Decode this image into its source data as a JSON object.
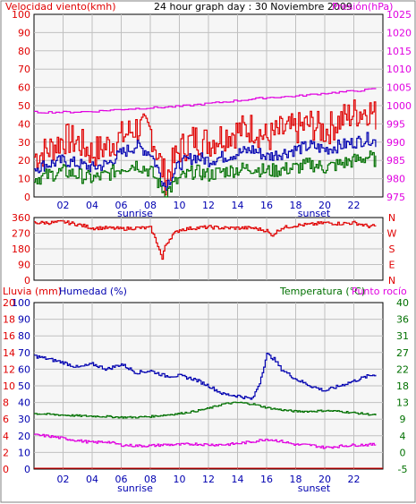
{
  "header": {
    "left_title": "Velocidad viento(kmh)",
    "center_title": "24 hour graph day : 30 Noviembre 2009",
    "right_title": "Presión(hPa)"
  },
  "colors": {
    "wind_speed": "#e00000",
    "wind_avg": "#0000b0",
    "wind_min": "#007000",
    "pressure": "#e000e0",
    "wind_dir": "#e00000",
    "rain": "#e00000",
    "humidity": "#0000b0",
    "temperature": "#007000",
    "dew_point": "#e000e0",
    "grid": "#c0c0c0",
    "plot_bg": "#f6f6f6"
  },
  "x_axis": {
    "hour_ticks": [
      "02",
      "04",
      "06",
      "08",
      "10",
      "12",
      "14",
      "16",
      "18",
      "20",
      "22"
    ],
    "sunrise_label": "sunrise",
    "sunset_label": "sunset",
    "sunrise_hour": 7,
    "sunset_hour": 19
  },
  "direction_panel": {
    "letters": [
      "N",
      "W",
      "S",
      "E",
      "N"
    ]
  },
  "bottom_header": {
    "rain_label": "Lluvia (mm)",
    "humidity_label": "Humedad (%)",
    "temperature_label": "Temperatura (°C)",
    "dew_label": "Punto rocío"
  },
  "chart_data": [
    {
      "type": "line",
      "title": "24 hour graph day : 30 Noviembre 2009",
      "x_range_hours": [
        0,
        24
      ],
      "y_left": {
        "label": "Velocidad viento(kmh)",
        "range": [
          0,
          100
        ],
        "ticks": [
          "0",
          "10",
          "20",
          "30",
          "40",
          "50",
          "60",
          "70",
          "80",
          "90",
          "100"
        ]
      },
      "y_right": {
        "label": "Presión(hPa)",
        "range": [
          975,
          1025
        ],
        "ticks": [
          "975",
          "980",
          "985",
          "990",
          "995",
          "1000",
          "1005",
          "1010",
          "1015",
          "1020",
          "1025"
        ]
      },
      "grid": true,
      "series": [
        {
          "name": "Velocidad viento",
          "axis": "left",
          "x": [
            0,
            1,
            2,
            3,
            4,
            5,
            6,
            7,
            8,
            9,
            10,
            11,
            12,
            13,
            14,
            15,
            16,
            17,
            18,
            19,
            20,
            21,
            22,
            23,
            23.5
          ],
          "y": [
            22,
            26,
            32,
            30,
            24,
            28,
            33,
            38,
            36,
            10,
            26,
            32,
            30,
            34,
            36,
            38,
            32,
            36,
            37,
            40,
            36,
            42,
            46,
            48,
            44
          ]
        },
        {
          "name": "Velocidad media",
          "axis": "left",
          "x": [
            0,
            1,
            2,
            3,
            4,
            5,
            6,
            7,
            8,
            9,
            10,
            11,
            12,
            13,
            14,
            15,
            16,
            17,
            18,
            19,
            20,
            21,
            22,
            23,
            23.5
          ],
          "y": [
            16,
            18,
            20,
            18,
            16,
            18,
            24,
            28,
            24,
            6,
            18,
            22,
            20,
            22,
            24,
            26,
            22,
            24,
            26,
            28,
            26,
            28,
            30,
            32,
            30
          ]
        },
        {
          "name": "Velocidad mínima",
          "axis": "left",
          "x": [
            0,
            1,
            2,
            3,
            4,
            5,
            6,
            7,
            8,
            9,
            10,
            11,
            12,
            13,
            14,
            15,
            16,
            17,
            18,
            19,
            20,
            21,
            22,
            23,
            23.5
          ],
          "y": [
            10,
            12,
            14,
            12,
            10,
            12,
            16,
            18,
            14,
            2,
            10,
            14,
            12,
            14,
            15,
            16,
            14,
            15,
            16,
            18,
            16,
            18,
            20,
            22,
            20
          ]
        },
        {
          "name": "Presión",
          "axis": "right",
          "x": [
            0,
            2,
            4,
            6,
            8,
            10,
            12,
            14,
            16,
            18,
            20,
            22,
            23.5
          ],
          "y": [
            998.2,
            998.2,
            998.4,
            999.0,
            999.4,
            999.8,
            1000.6,
            1001.4,
            1002.2,
            1002.6,
            1003.4,
            1004.0,
            1004.6
          ]
        }
      ]
    },
    {
      "type": "line",
      "title": "",
      "x_range_hours": [
        0,
        24
      ],
      "y_left": {
        "label": "",
        "range": [
          0,
          360
        ],
        "ticks": [
          "0",
          "90",
          "180",
          "270",
          "360"
        ]
      },
      "grid": true,
      "series": [
        {
          "name": "Dirección viento",
          "x": [
            0,
            1,
            2,
            3,
            4,
            5,
            6,
            7,
            8,
            8.5,
            8.8,
            9,
            9.5,
            10,
            11,
            12,
            13,
            14,
            15,
            16,
            16.3,
            17,
            18,
            19,
            20,
            21,
            22,
            23,
            23.5
          ],
          "y": [
            330,
            330,
            335,
            320,
            300,
            300,
            295,
            300,
            300,
            200,
            120,
            200,
            260,
            290,
            300,
            305,
            300,
            300,
            300,
            285,
            255,
            300,
            315,
            320,
            330,
            325,
            330,
            310,
            310
          ]
        }
      ]
    },
    {
      "type": "line",
      "title": "",
      "x_range_hours": [
        0,
        24
      ],
      "y_axes": {
        "rain": {
          "label": "Lluvia (mm)",
          "range": [
            0,
            20
          ],
          "ticks": [
            "0",
            "2",
            "4",
            "6",
            "8",
            "10",
            "12",
            "14",
            "16",
            "18",
            "20"
          ]
        },
        "humidity": {
          "label": "Humedad (%)",
          "range": [
            0,
            100
          ],
          "ticks": [
            "0",
            "10",
            "20",
            "30",
            "40",
            "50",
            "60",
            "70",
            "80",
            "90",
            "100"
          ]
        },
        "temperature": {
          "label": "Temperatura (°C)",
          "range": [
            -5,
            40
          ],
          "ticks": [
            "-5",
            "0",
            "4",
            "9",
            "13",
            "18",
            "22",
            "27",
            "31",
            "36",
            "40"
          ]
        }
      },
      "grid": true,
      "series": [
        {
          "name": "Lluvia",
          "axis": "rain",
          "x": [
            0,
            24
          ],
          "y": [
            0.1,
            0.1
          ]
        },
        {
          "name": "Humedad",
          "axis": "humidity",
          "x": [
            0,
            1,
            2,
            3,
            4,
            5,
            6,
            7,
            8,
            9,
            10,
            11,
            12,
            13,
            14,
            15,
            15.5,
            16,
            16.5,
            17,
            18,
            19,
            20,
            21,
            22,
            23,
            23.5
          ],
          "y": [
            68,
            66,
            64,
            61,
            63,
            60,
            63,
            58,
            59,
            56,
            56,
            54,
            50,
            45,
            44,
            42,
            52,
            69,
            66,
            60,
            54,
            50,
            47,
            50,
            53,
            56,
            57
          ]
        },
        {
          "name": "Temperatura",
          "axis": "temperature",
          "x": [
            0,
            1,
            2,
            3,
            4,
            5,
            6,
            7,
            8,
            9,
            10,
            11,
            12,
            13,
            14,
            15,
            16,
            17,
            18,
            19,
            20,
            21,
            22,
            23,
            23.5
          ],
          "y": [
            10,
            9.8,
            9.6,
            9.4,
            9.3,
            9.2,
            9.0,
            9.0,
            9.2,
            9.6,
            10.0,
            10.6,
            11.4,
            12.6,
            13.0,
            12.6,
            11.6,
            11.0,
            10.6,
            10.6,
            10.8,
            10.6,
            10.2,
            9.8,
            9.6
          ]
        },
        {
          "name": "Punto rocío",
          "axis": "temperature",
          "x": [
            0,
            1,
            2,
            3,
            4,
            5,
            6,
            7,
            8,
            9,
            10,
            11,
            12,
            13,
            14,
            15,
            16,
            17,
            18,
            19,
            20,
            21,
            22,
            23,
            23.5
          ],
          "y": [
            4.2,
            3.9,
            3.3,
            2.7,
            2.2,
            2.4,
            1.5,
            1.3,
            1.3,
            1.6,
            1.6,
            1.8,
            1.6,
            1.6,
            1.9,
            2.4,
            3.1,
            2.5,
            1.6,
            1.5,
            0.8,
            1.2,
            1.5,
            1.6,
            1.6
          ]
        }
      ]
    }
  ]
}
